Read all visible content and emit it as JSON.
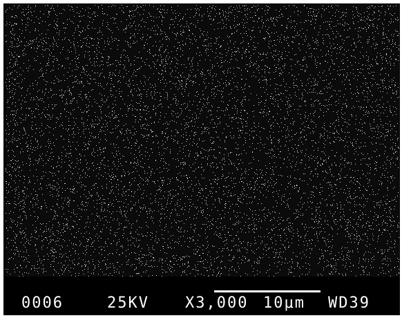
{
  "micrograph": {
    "frame_number": "0006",
    "accelerating_voltage": "25KV",
    "magnification": "X3,000",
    "scale_bar_label": "10μm",
    "working_distance": "WD39"
  },
  "colors": {
    "background": "#000000",
    "speckle": "#ffffff",
    "text": "#ffffff"
  }
}
